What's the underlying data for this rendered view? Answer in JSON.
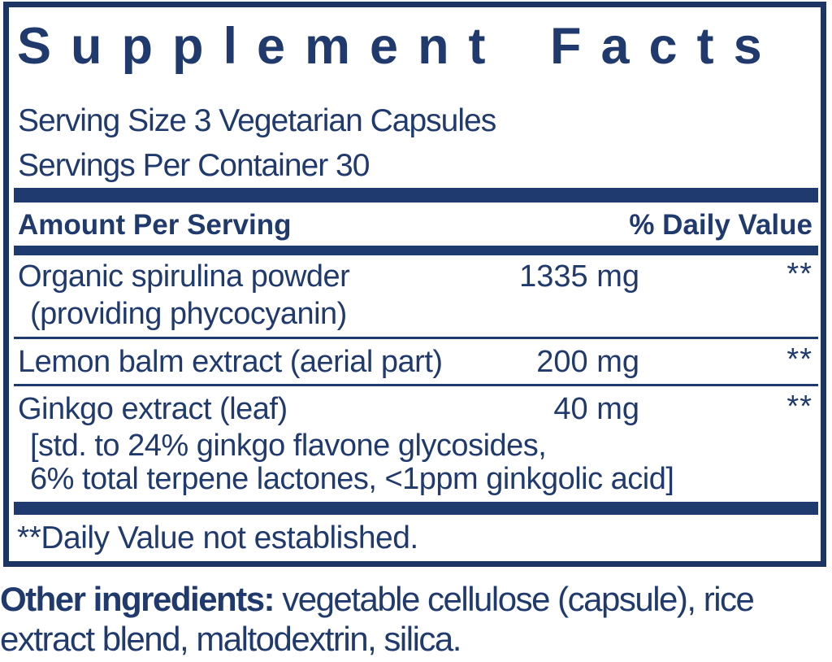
{
  "colors": {
    "navy_text": "#203a6d",
    "navy_bar": "#1e3a6e",
    "border": "#1c3565",
    "background": "#ffffff"
  },
  "supplement_facts": {
    "title": "Supplement Facts",
    "serving_size": "Serving Size 3 Vegetarian Capsules",
    "servings_per_container": "Servings Per Container 30",
    "columns": {
      "amount_header": "Amount Per Serving",
      "daily_value_header": "% Daily Value"
    },
    "rows": [
      {
        "name": "Organic spirulina powder",
        "detail": "(providing phycocyanin)",
        "amount": "1335 mg",
        "daily_value": "**"
      },
      {
        "name": "Lemon balm extract (aerial part)",
        "amount": "200 mg",
        "daily_value": "**"
      },
      {
        "name": "Ginkgo extract (leaf)",
        "amount": "40 mg",
        "daily_value": "**",
        "detail_lines": [
          "[std. to 24% ginkgo flavone glycosides,",
          "6% total terpene lactones, <1ppm ginkgolic acid]"
        ]
      }
    ],
    "footnote": "**Daily Value not established."
  },
  "other_ingredients": {
    "label": "Other ingredients:",
    "line1_rest": " vegetable cellulose (capsule), rice",
    "line2": "extract blend, maltodextrin, silica."
  }
}
